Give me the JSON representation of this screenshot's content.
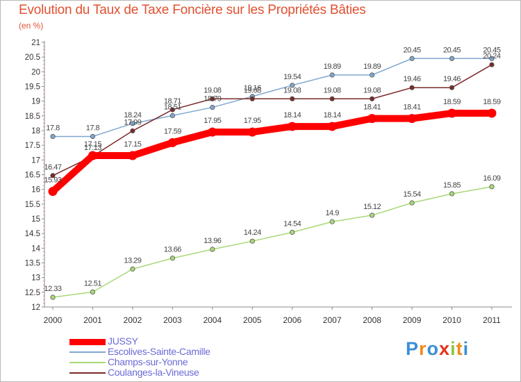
{
  "chart_data": {
    "type": "line",
    "title": "Evolution du Taux de Taxe Foncière sur les Propriétés Bâties",
    "subtitle": "(en %)",
    "x": [
      "2000",
      "2001",
      "2002",
      "2003",
      "2004",
      "2005",
      "2006",
      "2007",
      "2008",
      "2009",
      "2010",
      "2011"
    ],
    "ylim": [
      12,
      21
    ],
    "yticks": [
      "12",
      "12.5",
      "13",
      "13.5",
      "14",
      "14.5",
      "15",
      "15.5",
      "16",
      "16.5",
      "17",
      "17.5",
      "18",
      "18.5",
      "19",
      "19.5",
      "20",
      "20.5",
      "21"
    ],
    "grid": false,
    "legend_position": "bottom-left",
    "series": [
      {
        "name": "JUSSY",
        "color": "#ff0000",
        "values": [
          15.93,
          17.15,
          17.15,
          17.59,
          17.95,
          17.95,
          18.14,
          18.14,
          18.41,
          18.41,
          18.59,
          18.59
        ],
        "labels": [
          "15.93",
          "17.15",
          "17.15",
          "17.59",
          "17.95",
          "17.95",
          "18.14",
          "18.14",
          "18.41",
          "18.41",
          "18.59",
          "18.59"
        ]
      },
      {
        "name": "Escolives-Sainte-Camille",
        "color": "#7fa7d0",
        "values": [
          17.8,
          17.8,
          18.24,
          18.51,
          18.79,
          19.16,
          19.54,
          19.89,
          19.89,
          20.45,
          20.45,
          20.45
        ],
        "labels": [
          "17.8",
          "17.8",
          "18.24",
          "18.51",
          "18.79",
          "19.16",
          "19.54",
          "19.89",
          "19.89",
          "20.45",
          "20.45",
          "20.45"
        ]
      },
      {
        "name": "Champs-sur-Yonne",
        "color": "#a8d878",
        "values": [
          12.33,
          12.51,
          13.29,
          13.66,
          13.96,
          14.24,
          14.54,
          14.9,
          15.12,
          15.54,
          15.85,
          16.09
        ],
        "labels": [
          "12.33",
          "12.51",
          "13.29",
          "13.66",
          "13.96",
          "14.24",
          "14.54",
          "14.9",
          "15.12",
          "15.54",
          "15.85",
          "16.09"
        ]
      },
      {
        "name": "Coulanges-la-Vineuse",
        "color": "#7a2a2a",
        "values": [
          16.47,
          17.13,
          17.99,
          18.71,
          19.08,
          19.08,
          19.08,
          19.08,
          19.08,
          19.46,
          19.46,
          20.24
        ],
        "labels": [
          "16.47",
          "17.13",
          "17.99",
          "18.71",
          "19.08",
          "19.08",
          "19.08",
          "19.08",
          "19.08",
          "19.46",
          "19.46",
          "20.24"
        ]
      }
    ]
  },
  "logo": {
    "text": "Proxiti",
    "letters": [
      "P",
      "r",
      "o",
      "x",
      "i",
      "t",
      "i"
    ],
    "colors": [
      "#3a8fd8",
      "#f08a1a",
      "#3a8fd8",
      "#e8301a",
      "#8cc63f",
      "#f08a1a",
      "#3a8fd8"
    ]
  }
}
